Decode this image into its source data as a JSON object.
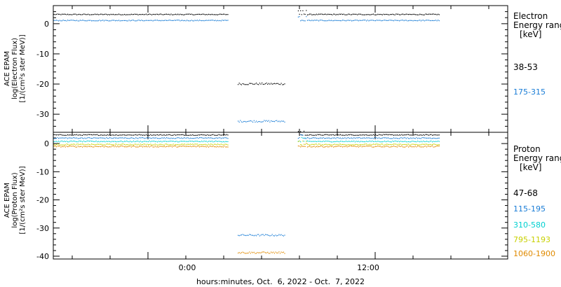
{
  "chart_data": [
    {
      "type": "scatter",
      "panel": "electron",
      "ylabel_lines": [
        "ACE EPAM",
        "log(Electron Flux)",
        "[1/(cm²s ster MeV)]"
      ],
      "ylim": [
        -36,
        6
      ],
      "yticks": [
        0,
        -10,
        -20,
        -30
      ],
      "ytick_labels": [
        "0",
        "-10",
        "-20",
        "-30"
      ],
      "legend": {
        "title_lines": [
          "Electron",
          "Energy range",
          "[keV]"
        ],
        "entries": [
          "38-53",
          "175-315"
        ]
      },
      "series": [
        {
          "name": "38-53",
          "color": "#000000",
          "base": 3.2,
          "gap_value": -19.8,
          "noise": 0.15
        },
        {
          "name": "175-315",
          "color": "#1a7dd6",
          "base": 1.2,
          "gap_value": -32.2,
          "noise": 0.15
        }
      ]
    },
    {
      "type": "scatter",
      "panel": "proton",
      "ylabel_lines": [
        "ACE EPAM",
        "log(Proton Flux)",
        "[1/(cm²s ster MeV)]"
      ],
      "ylim": [
        -41,
        4
      ],
      "yticks": [
        0,
        -10,
        -20,
        -30,
        -40
      ],
      "ytick_labels": [
        "0",
        "-10",
        "-20",
        "-30",
        "-40"
      ],
      "legend": {
        "title_lines": [
          "Proton",
          "Energy range",
          "[keV]"
        ],
        "entries": [
          "47-68",
          "115-195",
          "310-580",
          "795-1193",
          "1060-1900"
        ]
      },
      "series": [
        {
          "name": "47-68",
          "color": "#000000",
          "base": 3.2,
          "gap_value": null,
          "noise": 0.15
        },
        {
          "name": "115-195",
          "color": "#1a7dd6",
          "base": 2.1,
          "gap_value": -32.4,
          "noise": 0.18
        },
        {
          "name": "310-580",
          "color": "#00d0d0",
          "base": 0.9,
          "gap_value": null,
          "noise": 0.18
        },
        {
          "name": "795-1193",
          "color": "#c8d000",
          "base": -0.2,
          "gap_value": null,
          "noise": 0.2
        },
        {
          "name": "1060-1900",
          "color": "#e08a00",
          "base": -0.9,
          "gap_value": -38.6,
          "noise": 0.22
        }
      ]
    }
  ],
  "x_axis": {
    "start": "Oct. 6, 2022 ~19:00",
    "end": "Oct. 7, 2022 19:00",
    "tick_labels": [
      "0:00",
      "12:00"
    ],
    "label": "hours:minutes, Oct.  6, 2022 - Oct.  7, 2022",
    "data_end": "Oct. 7, 2022 ~15:00"
  }
}
